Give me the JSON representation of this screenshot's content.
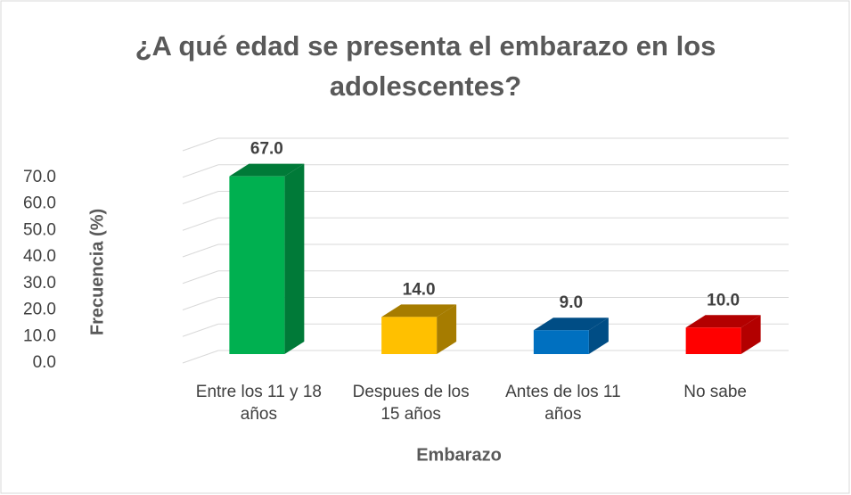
{
  "chart_data": {
    "type": "bar3d",
    "title": "¿A qué edad se presenta el embarazo en los adolescentes?",
    "x_label": "Embarazo",
    "y_label": "Frecuencia (%)",
    "categories": [
      "Entre los 11 y 18 años",
      "Despues de los 15 años",
      "Antes de los 11 años",
      "No sabe"
    ],
    "values": [
      67,
      14,
      9,
      10
    ],
    "value_labels": [
      "67.0",
      "14.0",
      "9.0",
      "10.0"
    ],
    "colors": [
      "#00b050",
      "#ffc000",
      "#0070c0",
      "#ff0000"
    ],
    "side_colors": [
      "#007a38",
      "#a67c00",
      "#004d85",
      "#b30000"
    ],
    "ylim": [
      0,
      80
    ],
    "yticks": [
      {
        "value": 0,
        "label": "0.0"
      },
      {
        "value": 10,
        "label": "10.0"
      },
      {
        "value": 20,
        "label": "20.0"
      },
      {
        "value": 30,
        "label": "30.0"
      },
      {
        "value": 40,
        "label": "40.0"
      },
      {
        "value": 50,
        "label": "50.0"
      },
      {
        "value": 60,
        "label": "60.0"
      },
      {
        "value": 70,
        "label": "70.0"
      }
    ],
    "grid": true
  }
}
